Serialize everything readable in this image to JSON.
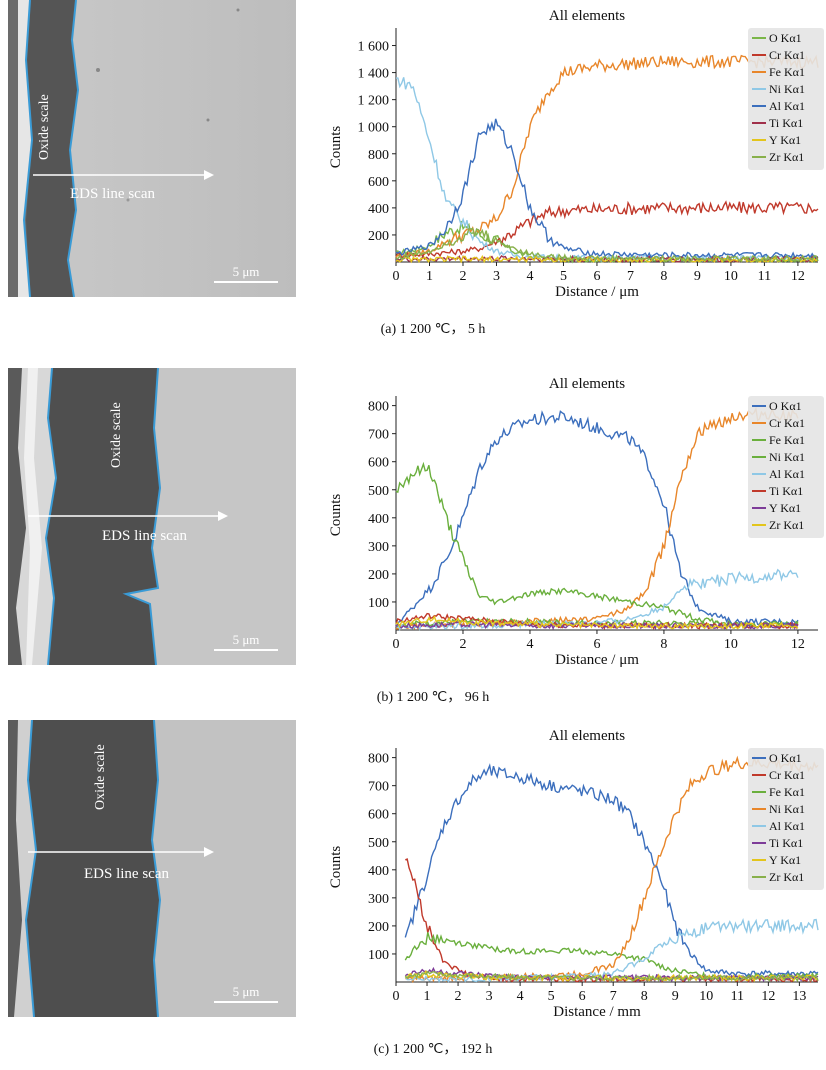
{
  "panels": [
    {
      "id": "a",
      "caption": "(a) 1 200 ℃， 5 h",
      "sem": {
        "label_oxide": "Oxide scale",
        "label_scan": "EDS line scan",
        "scale_bar": "5 μm"
      },
      "colors": {
        "O": "#7ab648",
        "Cr": "#c0392b",
        "Fe": "#e8862a",
        "Ni": "#8fc8e6",
        "Al": "#3c6fbd",
        "Ti": "#a0304a",
        "Y": "#e3c51c",
        "Zr": "#88b04b"
      }
    },
    {
      "id": "b",
      "caption": "(b) 1 200 ℃， 96 h",
      "sem": {
        "label_oxide": "Oxide scale",
        "label_scan": "EDS line scan",
        "scale_bar": "5 μm"
      },
      "colors": {
        "O": "#3c6fbd",
        "Cr": "#e8862a",
        "Fe": "#6aaf3d",
        "Ni": "#6aaf3d",
        "Al": "#8fc8e6",
        "Ti": "#c0392b",
        "Y": "#7d3c98",
        "Zr": "#e3c51c"
      }
    },
    {
      "id": "c",
      "caption": "(c) 1 200 ℃， 192 h",
      "sem": {
        "label_oxide": "Oxide scale",
        "label_scan": "EDS line scan",
        "scale_bar": "5 μm"
      },
      "colors": {
        "O": "#3c6fbd",
        "Cr": "#c0392b",
        "Fe": "#6aaf3d",
        "Ni": "#e8862a",
        "Al": "#8fc8e6",
        "Ti": "#7d3c98",
        "Y": "#e3c51c",
        "Zr": "#88b04b"
      }
    }
  ],
  "chart_data": [
    {
      "type": "line",
      "title": "All elements",
      "xlabel": "Distance / μm",
      "ylabel": "Counts",
      "xlim": [
        0,
        12.6
      ],
      "ylim": [
        0,
        1700
      ],
      "xticks": [
        "0",
        "1",
        "2",
        "3",
        "4",
        "5",
        "6",
        "7",
        "8",
        "9",
        "10",
        "11",
        "12"
      ],
      "yticks": [
        "200",
        "400",
        "600",
        "800",
        "1 000",
        "1 200",
        "1 400",
        "1 600"
      ],
      "legend": [
        "O Kα1",
        "Cr Kα1",
        "Fe Kα1",
        "Ni Kα1",
        "Al Kα1",
        "Ti Kα1",
        "Y Kα1",
        "Zr Kα1"
      ],
      "legend_position": "top-right",
      "series": [
        {
          "name": "O Kα1",
          "x": [
            0,
            1,
            1.5,
            2,
            2.5,
            3,
            3.5,
            4,
            5,
            6,
            8,
            10,
            12.6
          ],
          "values": [
            60,
            120,
            220,
            260,
            200,
            160,
            80,
            40,
            20,
            15,
            15,
            15,
            15
          ]
        },
        {
          "name": "Cr Kα1",
          "x": [
            0,
            1,
            2,
            2.5,
            3,
            3.5,
            4,
            4.5,
            5,
            6,
            8,
            10,
            12.6
          ],
          "values": [
            50,
            60,
            80,
            100,
            150,
            220,
            300,
            360,
            380,
            390,
            400,
            400,
            400
          ]
        },
        {
          "name": "Fe Kα1",
          "x": [
            0,
            1,
            1.5,
            2,
            2.5,
            3,
            3.5,
            4,
            4.5,
            5,
            6,
            8,
            10,
            12.6
          ],
          "values": [
            40,
            80,
            150,
            200,
            240,
            320,
            550,
            1000,
            1250,
            1400,
            1450,
            1480,
            1480,
            1480
          ]
        },
        {
          "name": "Ni Kα1",
          "x": [
            0,
            0.5,
            1,
            1.5,
            2,
            2.5,
            3,
            3.5,
            4,
            5,
            8,
            12.6
          ],
          "values": [
            1350,
            1300,
            900,
            450,
            300,
            150,
            80,
            50,
            40,
            30,
            30,
            30
          ]
        },
        {
          "name": "Al Kα1",
          "x": [
            0,
            1,
            1.5,
            2,
            2.5,
            3,
            3.5,
            4,
            4.5,
            5,
            6,
            8,
            10,
            12.6
          ],
          "values": [
            60,
            120,
            250,
            500,
            950,
            1020,
            800,
            400,
            200,
            100,
            60,
            50,
            50,
            50
          ]
        },
        {
          "name": "Ti Kα1",
          "x": [
            0,
            2,
            4,
            6,
            8,
            10,
            12.6
          ],
          "values": [
            20,
            25,
            25,
            20,
            20,
            20,
            20
          ]
        },
        {
          "name": "Y Kα1",
          "x": [
            0,
            2,
            4,
            6,
            8,
            10,
            12.6
          ],
          "values": [
            15,
            20,
            20,
            15,
            15,
            15,
            15
          ]
        },
        {
          "name": "Zr Kα1",
          "x": [
            0,
            1,
            2,
            2.5,
            3,
            4,
            5,
            8,
            12.6
          ],
          "values": [
            30,
            80,
            200,
            220,
            150,
            60,
            30,
            25,
            25
          ]
        }
      ]
    },
    {
      "type": "line",
      "title": "All elements",
      "xlabel": "Distance / μm",
      "ylabel": "Counts",
      "xlim": [
        0,
        12.6
      ],
      "ylim": [
        0,
        820
      ],
      "xticks": [
        "0",
        "2",
        "4",
        "6",
        "8",
        "10",
        "12"
      ],
      "yticks": [
        "100",
        "200",
        "300",
        "400",
        "500",
        "600",
        "700",
        "800"
      ],
      "legend": [
        "O Kα1",
        "Cr Kα1",
        "Fe Kα1",
        "Ni Kα1",
        "Al Kα1",
        "Ti Kα1",
        "Y Kα1",
        "Zr Kα1"
      ],
      "legend_position": "top-right",
      "series": [
        {
          "name": "O Kα1",
          "x": [
            0,
            0.5,
            1,
            1.5,
            2,
            2.5,
            3,
            3.5,
            4,
            5,
            6,
            7,
            7.5,
            8,
            8.5,
            9,
            10,
            12
          ],
          "values": [
            20,
            80,
            150,
            250,
            400,
            580,
            680,
            720,
            750,
            760,
            720,
            680,
            600,
            450,
            200,
            80,
            30,
            30
          ]
        },
        {
          "name": "Cr Kα1",
          "x": [
            0,
            2,
            4,
            6,
            7,
            7.5,
            8,
            8.5,
            9,
            10,
            11,
            12
          ],
          "values": [
            10,
            20,
            30,
            40,
            80,
            150,
            300,
            550,
            700,
            760,
            770,
            760
          ]
        },
        {
          "name": "Fe Kα1",
          "x": [
            0,
            0.5,
            1,
            1.5,
            2,
            2.5,
            3,
            4,
            5,
            6,
            7,
            8,
            9,
            10,
            12
          ],
          "values": [
            500,
            560,
            580,
            400,
            250,
            120,
            100,
            130,
            140,
            120,
            100,
            80,
            40,
            20,
            20
          ]
        },
        {
          "name": "Ni Kα1",
          "x": [
            0,
            2,
            4,
            6,
            8,
            10,
            12
          ],
          "values": [
            20,
            30,
            30,
            25,
            25,
            20,
            20
          ]
        },
        {
          "name": "Al Kα1",
          "x": [
            0,
            2,
            4,
            6,
            7,
            8,
            8.5,
            9,
            10,
            11,
            12
          ],
          "values": [
            10,
            15,
            20,
            25,
            40,
            80,
            150,
            170,
            180,
            190,
            200
          ]
        },
        {
          "name": "Ti Kα1",
          "x": [
            0,
            1,
            2,
            4,
            6,
            8,
            10,
            12
          ],
          "values": [
            30,
            50,
            40,
            20,
            15,
            15,
            15,
            15
          ]
        },
        {
          "name": "Y Kα1",
          "x": [
            0,
            2,
            4,
            6,
            8,
            10,
            12
          ],
          "values": [
            15,
            20,
            15,
            15,
            15,
            15,
            15
          ]
        },
        {
          "name": "Zr Kα1",
          "x": [
            0,
            1,
            2,
            4,
            6,
            8,
            10,
            12
          ],
          "values": [
            20,
            40,
            30,
            20,
            15,
            15,
            15,
            15
          ]
        }
      ]
    },
    {
      "type": "line",
      "title": "All elements",
      "xlabel": "Distance / mm",
      "ylabel": "Counts",
      "xlim": [
        0,
        13.6
      ],
      "ylim": [
        0,
        820
      ],
      "xticks": [
        "0",
        "1",
        "2",
        "3",
        "4",
        "5",
        "6",
        "7",
        "8",
        "9",
        "10",
        "11",
        "12",
        "13"
      ],
      "yticks": [
        "100",
        "200",
        "300",
        "400",
        "500",
        "600",
        "700",
        "800"
      ],
      "legend": [
        "O Kα1",
        "Cr Kα1",
        "Fe Kα1",
        "Ni Kα1",
        "Al Kα1",
        "Ti Kα1",
        "Y Kα1",
        "Zr Kα1"
      ],
      "legend_position": "top-right",
      "series": [
        {
          "name": "O Kα1",
          "x": [
            0.3,
            0.6,
            1,
            1.5,
            2,
            2.5,
            3,
            4,
            5,
            6,
            7,
            7.5,
            8,
            8.5,
            9,
            9.5,
            10,
            11,
            12,
            13.6
          ],
          "values": [
            150,
            250,
            380,
            550,
            650,
            720,
            750,
            730,
            700,
            680,
            650,
            600,
            500,
            380,
            200,
            100,
            40,
            30,
            30,
            30
          ]
        },
        {
          "name": "Cr Kα1",
          "x": [
            0.3,
            0.6,
            1,
            1.5,
            2,
            2.5,
            3,
            4,
            6,
            8,
            10,
            12,
            13.6
          ],
          "values": [
            450,
            350,
            200,
            80,
            40,
            20,
            15,
            10,
            10,
            10,
            10,
            10,
            10
          ]
        },
        {
          "name": "Fe Kα1",
          "x": [
            0.3,
            0.6,
            1,
            1.5,
            2,
            3,
            4,
            5,
            6,
            7,
            8,
            8.5,
            9,
            10,
            12,
            13.6
          ],
          "values": [
            80,
            120,
            160,
            150,
            140,
            120,
            110,
            110,
            110,
            100,
            80,
            60,
            40,
            20,
            20,
            20
          ]
        },
        {
          "name": "Ni Kα1",
          "x": [
            0.3,
            2,
            4,
            6,
            7,
            7.5,
            8,
            8.5,
            9,
            9.5,
            10,
            11,
            12,
            13.6
          ],
          "values": [
            10,
            15,
            20,
            30,
            60,
            150,
            300,
            450,
            600,
            700,
            750,
            780,
            780,
            770
          ]
        },
        {
          "name": "Al Kα1",
          "x": [
            0.3,
            2,
            4,
            6,
            7,
            8,
            8.5,
            9,
            9.5,
            10,
            11,
            12,
            13.6
          ],
          "values": [
            10,
            10,
            15,
            20,
            30,
            80,
            130,
            160,
            180,
            190,
            200,
            200,
            200
          ]
        },
        {
          "name": "Ti Kα1",
          "x": [
            0.3,
            1,
            2,
            4,
            6,
            8,
            10,
            13.6
          ],
          "values": [
            30,
            40,
            30,
            15,
            15,
            15,
            15,
            15
          ]
        },
        {
          "name": "Y Kα1",
          "x": [
            0.3,
            1,
            2,
            4,
            6,
            8,
            10,
            13.6
          ],
          "values": [
            20,
            30,
            20,
            15,
            15,
            15,
            15,
            15
          ]
        },
        {
          "name": "Zr Kα1",
          "x": [
            0.3,
            1,
            2,
            4,
            6,
            8,
            10,
            13.6
          ],
          "values": [
            20,
            30,
            25,
            15,
            15,
            15,
            15,
            15
          ]
        }
      ]
    }
  ]
}
